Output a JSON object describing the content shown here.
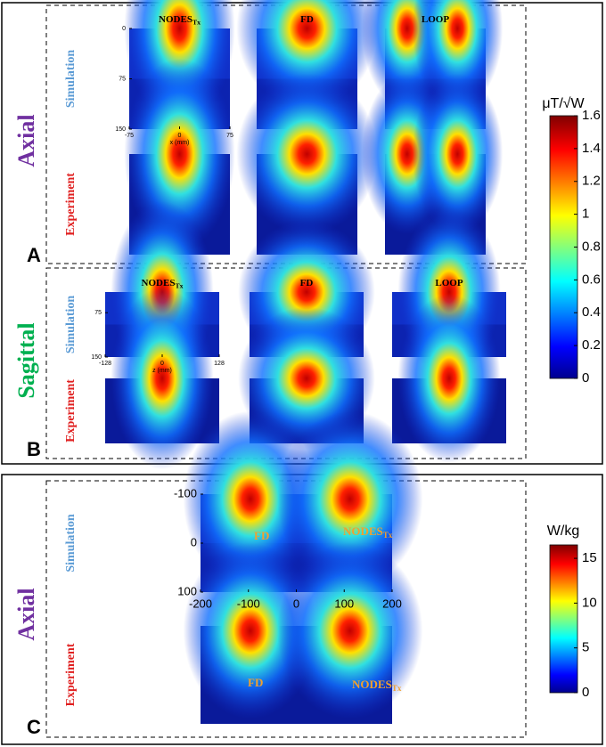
{
  "panels": [
    {
      "label": "A",
      "orientation": "Axial",
      "rows": [
        "Simulation",
        "Experiment"
      ],
      "columns": [
        {
          "text": "NODES",
          "sub": "Tx"
        },
        {
          "text": "FD"
        },
        {
          "text": "LOOP"
        }
      ],
      "xlim": [
        -75,
        75
      ],
      "xticks": [
        -75,
        0,
        75
      ],
      "ylim": [
        0,
        150
      ],
      "yticks": [
        0,
        75,
        150
      ],
      "xlabel": "x (mm)"
    },
    {
      "label": "B",
      "orientation": "Sagittal",
      "rows": [
        "Simulation",
        "Experiment"
      ],
      "columns": [
        {
          "text": "NODES",
          "sub": "Tx"
        },
        {
          "text": "FD"
        },
        {
          "text": "LOOP"
        }
      ],
      "xlim": [
        -128,
        128
      ],
      "xticks": [
        -128,
        0,
        128
      ],
      "ylim": [
        40,
        150
      ],
      "yticks": [
        75,
        150
      ],
      "xlabel": "z (mm)"
    },
    {
      "label": "C",
      "orientation": "Axial",
      "rows": [
        "Simulation",
        "Experiment"
      ],
      "xlim": [
        -200,
        200
      ],
      "xticks": [
        -200,
        -100,
        0,
        100,
        200
      ],
      "ylim": [
        -100,
        100
      ],
      "yticks": [
        -100,
        0,
        100
      ],
      "overlays": [
        {
          "text": "FD"
        },
        {
          "text": "NODES",
          "sub": "Tx"
        }
      ]
    }
  ],
  "colorbars": [
    {
      "unit": "μT/√W",
      "lim": [
        0,
        1.6
      ],
      "ticks": [
        0,
        0.2,
        0.4,
        0.6,
        0.8,
        1,
        1.2,
        1.4,
        1.6
      ]
    },
    {
      "unit": "W/kg",
      "lim": [
        0,
        16.5
      ],
      "ticks": [
        0,
        5,
        10,
        15
      ]
    }
  ]
}
